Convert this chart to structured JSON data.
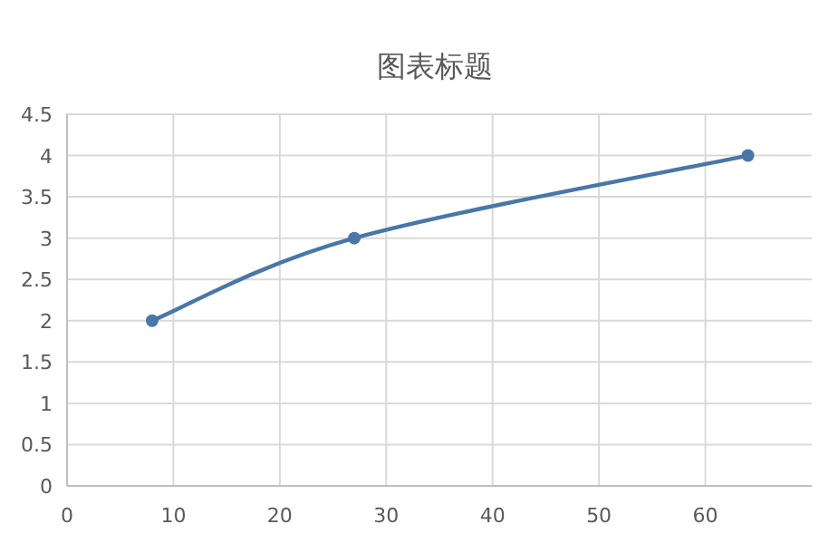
{
  "chart_data": {
    "type": "line",
    "title": "图表标题",
    "series": [
      {
        "color": "#4a76a8",
        "x": [
          8,
          27,
          64
        ],
        "values": [
          2,
          3,
          4
        ],
        "marker": "circle"
      }
    ],
    "xlim": [
      0,
      70
    ],
    "xticks": [
      0,
      10,
      20,
      30,
      40,
      50,
      60
    ],
    "ylim": [
      0,
      4.5
    ],
    "yticks": [
      0,
      0.5,
      1,
      1.5,
      2,
      2.5,
      3,
      3.5,
      4,
      4.5
    ],
    "grid": true
  }
}
